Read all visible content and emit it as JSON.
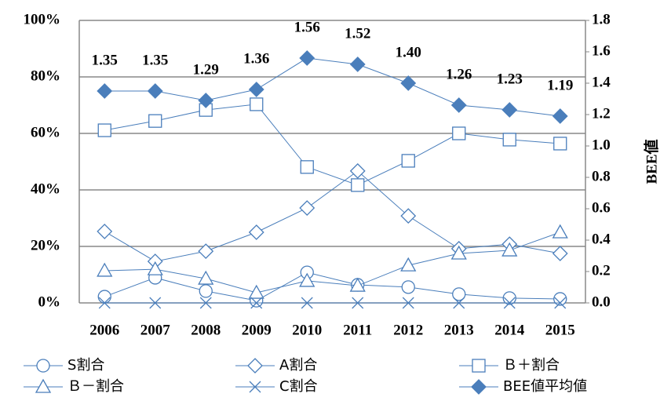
{
  "chart_data": {
    "type": "line",
    "categories": [
      "2006",
      "2007",
      "2008",
      "2009",
      "2010",
      "2011",
      "2012",
      "2013",
      "2014",
      "2015"
    ],
    "ylim": [
      0,
      100
    ],
    "yticks": [
      {
        "value": 0,
        "label": "0%"
      },
      {
        "value": 20,
        "label": "20%"
      },
      {
        "value": 40,
        "label": "40%"
      },
      {
        "value": 60,
        "label": "60%"
      },
      {
        "value": 80,
        "label": "80%"
      },
      {
        "value": 100,
        "label": "100%"
      }
    ],
    "y2lim": [
      0,
      1.8
    ],
    "y2ticks": [
      {
        "value": 0,
        "label": "0.0"
      },
      0.2,
      0.4,
      0.6,
      0.8,
      {
        "value": 1,
        "label": "1.0"
      },
      1.2,
      1.4,
      1.6,
      1.8
    ],
    "y2label": "BEE値",
    "grid": true,
    "legend": "bottom",
    "series": [
      {
        "name": "S割合",
        "color": "#4a7ebb",
        "marker": "circle",
        "values": [
          2.2,
          8.9,
          4.2,
          0.8,
          10.8,
          6.4,
          5.6,
          3.1,
          1.7,
          1.4
        ]
      },
      {
        "name": "A割合",
        "color": "#4a7ebb",
        "marker": "diamond",
        "values": [
          25.3,
          14.7,
          18.3,
          25,
          33.6,
          46.7,
          30.8,
          19.2,
          20.8,
          17.5
        ]
      },
      {
        "name": "Ｂ＋割合",
        "color": "#4a7ebb",
        "marker": "square",
        "values": [
          61.1,
          64.4,
          68.3,
          70.3,
          48.1,
          41.7,
          50.3,
          60,
          57.8,
          56.4
        ]
      },
      {
        "name": "Ｂ－割合",
        "color": "#4a7ebb",
        "marker": "triangle",
        "values": [
          11.4,
          11.9,
          8.6,
          3.6,
          7.8,
          6.1,
          13.3,
          17.5,
          18.6,
          25
        ]
      },
      {
        "name": "C割合",
        "color": "#4a7ebb",
        "marker": "x",
        "values": [
          0,
          0,
          0,
          0,
          0,
          0,
          0,
          0,
          0,
          0
        ]
      },
      {
        "name": "BEE値平均値",
        "color": "#4a7ebb",
        "marker": "filled-diamond",
        "axis": "y2",
        "values": [
          1.35,
          1.35,
          1.29,
          1.36,
          1.56,
          1.52,
          1.4,
          1.26,
          1.23,
          1.19
        ],
        "value_labels": [
          "1.35",
          "1.35",
          "1.29",
          "1.36",
          "1.56",
          "1.52",
          "1.40",
          "1.26",
          "1.23",
          "1.19"
        ]
      }
    ]
  }
}
